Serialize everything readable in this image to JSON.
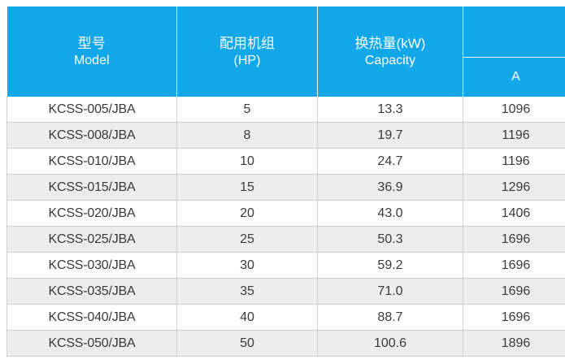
{
  "header": {
    "model_cn": "型号",
    "model_en": "Model",
    "hp_cn": "配用机组",
    "hp_en": "(HP)",
    "capacity_cn": "换热量(kW)",
    "capacity_en": "Capacity",
    "dim_a": "A"
  },
  "rows": [
    {
      "model": "KCSS-005/JBA",
      "hp": "5",
      "capacity": "13.3",
      "a": "1096"
    },
    {
      "model": "KCSS-008/JBA",
      "hp": "8",
      "capacity": "19.7",
      "a": "1196"
    },
    {
      "model": "KCSS-010/JBA",
      "hp": "10",
      "capacity": "24.7",
      "a": "1196"
    },
    {
      "model": "KCSS-015/JBA",
      "hp": "15",
      "capacity": "36.9",
      "a": "1296"
    },
    {
      "model": "KCSS-020/JBA",
      "hp": "20",
      "capacity": "43.0",
      "a": "1406"
    },
    {
      "model": "KCSS-025/JBA",
      "hp": "25",
      "capacity": "50.3",
      "a": "1696"
    },
    {
      "model": "KCSS-030/JBA",
      "hp": "30",
      "capacity": "59.2",
      "a": "1696"
    },
    {
      "model": "KCSS-035/JBA",
      "hp": "35",
      "capacity": "71.0",
      "a": "1696"
    },
    {
      "model": "KCSS-040/JBA",
      "hp": "40",
      "capacity": "88.7",
      "a": "1696"
    },
    {
      "model": "KCSS-050/JBA",
      "hp": "50",
      "capacity": "100.6",
      "a": "1896"
    }
  ],
  "colors": {
    "header_bg": "#12a7e8",
    "row_alt_bg": "#ededed",
    "grid_line": "#cfcfcf"
  }
}
